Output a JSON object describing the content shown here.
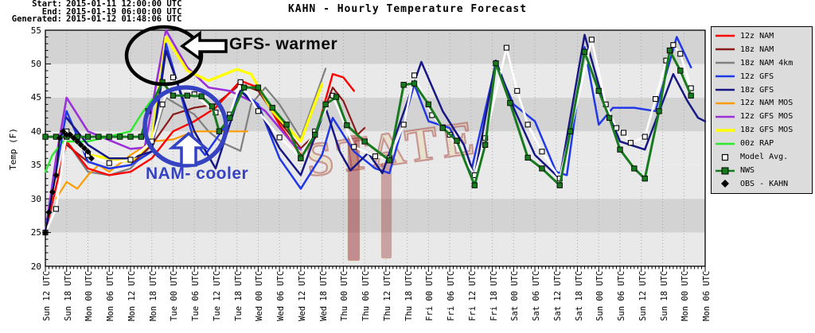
{
  "header": {
    "rows": [
      {
        "label": "Start:",
        "value": "2015-01-11 12:00:00 UTC"
      },
      {
        "label": "End:",
        "value": "2015-01-19 06:00:00 UTC"
      },
      {
        "label": "Generated:",
        "value": "2015-01-12 01:48:06 UTC"
      }
    ]
  },
  "title": "KAHN - Hourly Temperature Forecast",
  "watermark": {
    "text": "STATE"
  },
  "chart_data": {
    "type": "line",
    "title": "KAHN - Hourly Temperature Forecast",
    "xlabel": "",
    "ylabel": "Temp (F)",
    "ylim": [
      20,
      55
    ],
    "ytick_step": 5,
    "ytick_labels": [
      "20",
      "25",
      "30",
      "35",
      "40",
      "45",
      "50",
      "55"
    ],
    "x_unit_hours_from": "Sun 12 UTC",
    "xlim_hours": [
      0,
      186
    ],
    "xtick_step_hours": 6,
    "xtick_labels": [
      "Sun 12 UTC",
      "Sun 18 UTC",
      "Mon 00 UTC",
      "Mon 06 UTC",
      "Mon 12 UTC",
      "Mon 18 UTC",
      "Tue 00 UTC",
      "Tue 06 UTC",
      "Tue 12 UTC",
      "Tue 18 UTC",
      "Wed 00 UTC",
      "Wed 06 UTC",
      "Wed 12 UTC",
      "Wed 18 UTC",
      "Thu 00 UTC",
      "Thu 06 UTC",
      "Thu 12 UTC",
      "Thu 18 UTC",
      "Fri 00 UTC",
      "Fri 06 UTC",
      "Fri 12 UTC",
      "Fri 18 UTC",
      "Sat 00 UTC",
      "Sat 06 UTC",
      "Sat 12 UTC",
      "Sat 18 UTC",
      "Sun 00 UTC",
      "Sun 06 UTC",
      "Sun 12 UTC",
      "Sun 18 UTC",
      "Mon 00 UTC",
      "Mon 06 UTC"
    ],
    "grid": "vertical-dotted",
    "shaded_bands_f": {
      "dark": [
        [
          50,
          55
        ],
        [
          40,
          45
        ],
        [
          25,
          30
        ]
      ],
      "light": [
        [
          45,
          50
        ],
        [
          35,
          40
        ],
        [
          30,
          35
        ],
        [
          20,
          25
        ]
      ]
    },
    "band_colors": {
      "dark": "#d3d3d3",
      "light": "#e9e9e9"
    },
    "legend_position": "outside-right",
    "series": [
      {
        "id": "nam4km",
        "label": "18z NAM 4km",
        "color": "#7f7f7f",
        "width": 2.2,
        "marker": "none",
        "x": [
          6,
          12,
          18,
          24,
          30,
          34,
          42,
          46,
          50,
          55,
          58,
          62,
          66,
          72,
          79
        ],
        "y": [
          38.5,
          34,
          33.5,
          34.5,
          38,
          45,
          42.5,
          40,
          38.3,
          37.1,
          44,
          46.5,
          44,
          39,
          49.3
        ]
      },
      {
        "id": "nammos12",
        "label": "12z NAM MOS",
        "color": "#ff9c00",
        "width": 2.2,
        "marker": "none",
        "x": [
          3,
          6,
          9,
          12,
          15,
          18,
          24,
          30,
          36,
          42,
          48,
          57
        ],
        "y": [
          30,
          32.5,
          31.5,
          33.5,
          35,
          34,
          36.5,
          38.5,
          38.8,
          40,
          40,
          40
        ]
      },
      {
        "id": "nam18",
        "label": "18z NAM",
        "color": "#8b1a1a",
        "width": 2.2,
        "marker": "none",
        "x": [
          6,
          12,
          18,
          24,
          30,
          36,
          42,
          48,
          55,
          60,
          66,
          72,
          76,
          81,
          84,
          88,
          90
        ],
        "y": [
          38,
          35.5,
          34.5,
          35,
          38,
          42.5,
          43.5,
          44,
          47,
          46,
          41.5,
          37.5,
          39.5,
          46.5,
          44.5,
          39.5,
          40.5
        ]
      },
      {
        "id": "nam12",
        "label": "12z NAM",
        "color": "#ff0000",
        "width": 2.4,
        "marker": "none",
        "x": [
          0,
          6,
          12,
          18,
          24,
          30,
          36,
          42,
          48,
          55,
          60,
          66,
          72,
          76,
          81,
          84,
          87
        ],
        "y": [
          25,
          38.5,
          34.5,
          33.5,
          34,
          36,
          40,
          41.5,
          43.5,
          47.5,
          46.5,
          41,
          36.5,
          39,
          48.5,
          48,
          46
        ]
      },
      {
        "id": "gfsmos12",
        "label": "12z GFS MOS",
        "color": "#9b30d9",
        "width": 2.6,
        "marker": "none",
        "x": [
          0,
          3,
          6,
          9,
          12,
          18,
          24,
          28,
          34,
          40,
          46,
          52,
          58,
          62,
          66,
          70,
          72
        ],
        "y": [
          25,
          36,
          45,
          42.5,
          40,
          38.7,
          37.4,
          37.6,
          55,
          49.5,
          46.5,
          46,
          44.5,
          43,
          40.5,
          38,
          37.3
        ]
      },
      {
        "id": "gfsmos18",
        "label": "18z GFS MOS",
        "color": "#ffff00",
        "width": 3.4,
        "marker": "none",
        "x": [
          12,
          18,
          24,
          30,
          34,
          40,
          46,
          54,
          58,
          64,
          72,
          78
        ],
        "y": [
          36.5,
          36,
          35.5,
          38.5,
          54,
          49,
          47.5,
          49.2,
          48.5,
          43,
          38.5,
          47
        ]
      },
      {
        "id": "rap00",
        "label": "00z RAP",
        "color": "#2de82d",
        "width": 2.4,
        "marker": "none",
        "x": [
          0,
          2,
          5,
          8,
          12,
          16,
          20,
          24,
          27,
          30
        ],
        "y": [
          34,
          36.5,
          38.5,
          38.5,
          38.5,
          39,
          39.5,
          40,
          42.5,
          44.7
        ]
      },
      {
        "id": "gfs12",
        "label": "12z GFS",
        "color": "#2038e8",
        "width": 2.5,
        "marker": "none",
        "x": [
          0,
          6,
          12,
          18,
          24,
          30,
          34,
          42,
          45,
          51,
          55,
          60,
          66,
          72,
          78,
          81,
          87,
          93,
          97,
          104,
          108,
          114,
          120,
          127,
          132,
          138,
          144,
          147,
          152,
          156,
          160,
          166,
          172,
          178,
          182
        ],
        "y": [
          25,
          43,
          35.5,
          34.5,
          35,
          37,
          53,
          38.5,
          36.5,
          41,
          46,
          44,
          36,
          31.5,
          36.5,
          42,
          37,
          34.5,
          33.8,
          47,
          41.5,
          40.5,
          34,
          50,
          44,
          41.5,
          34,
          33.5,
          52.5,
          41,
          43.5,
          43.5,
          43,
          54,
          49.5
        ]
      },
      {
        "id": "gfs18",
        "label": "18z GFS",
        "color": "#181884",
        "width": 2.5,
        "marker": "none",
        "x": [
          6,
          12,
          18,
          24,
          30,
          34,
          42,
          48,
          55,
          60,
          66,
          72,
          79,
          83,
          86,
          91,
          95,
          106,
          112,
          118,
          121,
          127,
          132,
          138,
          145,
          152,
          157,
          162,
          169,
          177,
          181,
          184,
          186
        ],
        "y": [
          42,
          38,
          36,
          36,
          37,
          52,
          40,
          34.5,
          46,
          43.5,
          37.5,
          33.5,
          43.5,
          37,
          34.2,
          36.8,
          33.8,
          50.3,
          43,
          38,
          33.3,
          50.5,
          43.5,
          36.5,
          33,
          54.3,
          45,
          38.5,
          37.3,
          48.5,
          44.5,
          42,
          41.5
        ]
      },
      {
        "id": "avg",
        "label": "Model Avg.",
        "color": "#ffffff",
        "width": 2.6,
        "marker": "open-square",
        "x": [
          0,
          3,
          6,
          12,
          18,
          24,
          30,
          33,
          36,
          42,
          48,
          52,
          55,
          60,
          66,
          72,
          76,
          81,
          87,
          93,
          97,
          101,
          104,
          109,
          112,
          114,
          121,
          124,
          130,
          133,
          136,
          140,
          145,
          148,
          154,
          158,
          161,
          163,
          165,
          169,
          172,
          175,
          177,
          179,
          182
        ],
        "y": [
          25,
          28.5,
          40,
          36.5,
          35.3,
          35.8,
          38.5,
          44,
          48,
          45.5,
          42.8,
          42.5,
          47.3,
          43,
          39.1,
          36.2,
          40,
          45.3,
          37.7,
          36.3,
          36,
          41,
          48.3,
          42.4,
          40.6,
          39.5,
          33.5,
          39,
          52.4,
          46,
          41,
          37,
          33,
          40,
          53.6,
          44,
          40.5,
          39.8,
          38.3,
          39.2,
          44.8,
          50.5,
          52.8,
          51.5,
          46.4
        ]
      },
      {
        "id": "nws",
        "label": "NWS",
        "color": "#187a1e",
        "width": 3,
        "marker": "filled-square",
        "x": [
          0,
          3,
          6,
          9,
          12,
          15,
          18,
          21,
          24,
          27,
          29,
          33,
          36,
          40,
          44,
          47,
          49,
          52,
          56,
          60,
          64,
          68,
          72,
          76,
          79,
          82,
          85,
          90,
          97,
          101,
          104,
          108,
          112,
          116,
          121,
          124,
          127,
          131,
          136,
          140,
          145,
          148,
          152,
          156,
          159,
          162,
          166,
          169,
          173,
          176,
          179,
          182
        ],
        "y": [
          39.2,
          39.2,
          39.2,
          39.2,
          39.2,
          39.2,
          39.2,
          39.2,
          39.2,
          39.2,
          43,
          47.3,
          45.3,
          45.3,
          45.2,
          43.7,
          40,
          42,
          46.5,
          46.5,
          43.5,
          41,
          36,
          39.5,
          44,
          45.1,
          40.9,
          38.5,
          35.7,
          46.9,
          47.1,
          44,
          40.5,
          38.6,
          32,
          38,
          50.1,
          44.2,
          36.1,
          34.5,
          32,
          40,
          51.8,
          46,
          42,
          37.3,
          34.5,
          33,
          43,
          52,
          49,
          45.3
        ]
      },
      {
        "id": "obs",
        "label": "OBS - KAHN",
        "color": "#000000",
        "width": 1.4,
        "marker": "diamond",
        "x": [
          0,
          1,
          2,
          3,
          4,
          5,
          6,
          7,
          8,
          9,
          10,
          11,
          12,
          13
        ],
        "y": [
          25,
          28,
          31,
          33.5,
          39,
          40,
          39.5,
          39.5,
          39,
          38.5,
          38,
          37.5,
          37,
          36
        ]
      }
    ],
    "annotations": [
      {
        "id": "gfs-warmer",
        "text": "GFS- warmer",
        "color": "#0a0a0a",
        "shape": "black ellipse around Tue 00 UTC peak + left block arrow"
      },
      {
        "id": "nam-cooler",
        "text": "NAM- cooler",
        "color": "#3542c2",
        "shape": "blue ellipse around NAM cluster + up block arrow"
      }
    ]
  },
  "legend": {
    "entries": [
      "12z NAM",
      "18z NAM",
      "18z NAM 4km",
      "12z GFS",
      "18z GFS",
      "12z NAM MOS",
      "12z GFS MOS",
      "18z GFS MOS",
      "00z RAP",
      "Model Avg.",
      "NWS",
      "OBS - KAHN"
    ]
  }
}
